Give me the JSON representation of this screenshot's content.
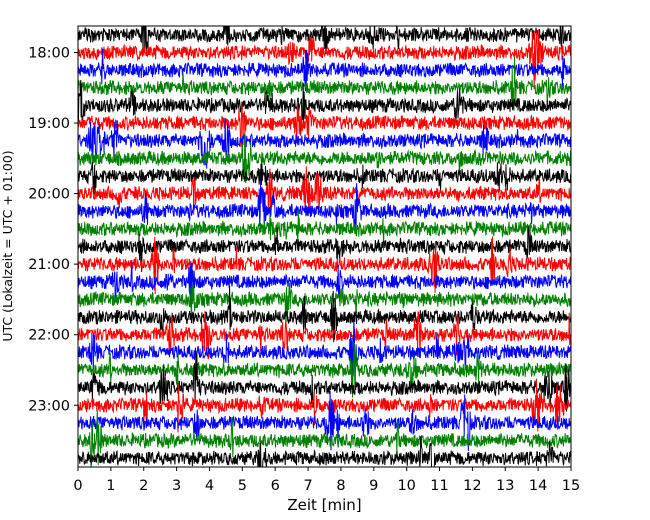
{
  "chart_data": {
    "type": "line",
    "title": "",
    "xlabel": "Zeit  [min]",
    "ylabel": "UTC (Lokalzeit = UTC + 01:00)",
    "xlim": [
      0,
      15
    ],
    "x_ticks": [
      0,
      1,
      2,
      3,
      4,
      5,
      6,
      7,
      8,
      9,
      10,
      11,
      12,
      13,
      14,
      15
    ],
    "y_ticks": [
      "18:00",
      "19:00",
      "20:00",
      "21:00",
      "22:00",
      "23:00"
    ],
    "trace_start": "17:45",
    "trace_interval_min": 15,
    "trace_count": 25,
    "color_cycle": [
      "#000000",
      "#ff0000",
      "#0000ff",
      "#008000"
    ],
    "grid": false,
    "legend": "none"
  }
}
